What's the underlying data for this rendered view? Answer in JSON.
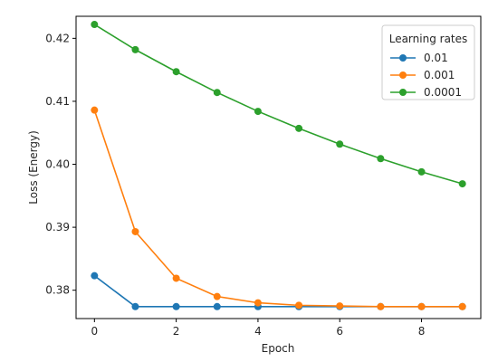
{
  "chart_data": {
    "type": "line",
    "title": "",
    "xlabel": "Epoch",
    "ylabel": "Loss (Energy)",
    "xlim": [
      -0.45,
      9.45
    ],
    "ylim": [
      0.3755,
      0.4235
    ],
    "xticks": [
      0,
      2,
      4,
      6,
      8
    ],
    "yticks": [
      0.38,
      0.39,
      0.4,
      0.41,
      0.42
    ],
    "ytick_labels": [
      "0.38",
      "0.39",
      "0.40",
      "0.41",
      "0.42"
    ],
    "grid": false,
    "legend": {
      "title": "Learning rates",
      "placement": "top-right"
    },
    "x": [
      0,
      1,
      2,
      3,
      4,
      5,
      6,
      7,
      8,
      9
    ],
    "series": [
      {
        "name": "0.01",
        "color": "#1f77b4",
        "values": [
          0.3823,
          0.3774,
          0.3774,
          0.3774,
          0.3774,
          0.3774,
          0.3774,
          0.3774,
          0.3774,
          0.3774
        ]
      },
      {
        "name": "0.001",
        "color": "#ff7f0e",
        "values": [
          0.4086,
          0.3893,
          0.3819,
          0.379,
          0.378,
          0.3776,
          0.3775,
          0.3774,
          0.3774,
          0.3774
        ]
      },
      {
        "name": "0.0001",
        "color": "#2ca02c",
        "values": [
          0.4222,
          0.4182,
          0.4147,
          0.4114,
          0.4084,
          0.4057,
          0.4032,
          0.4009,
          0.3988,
          0.3969
        ]
      }
    ]
  }
}
